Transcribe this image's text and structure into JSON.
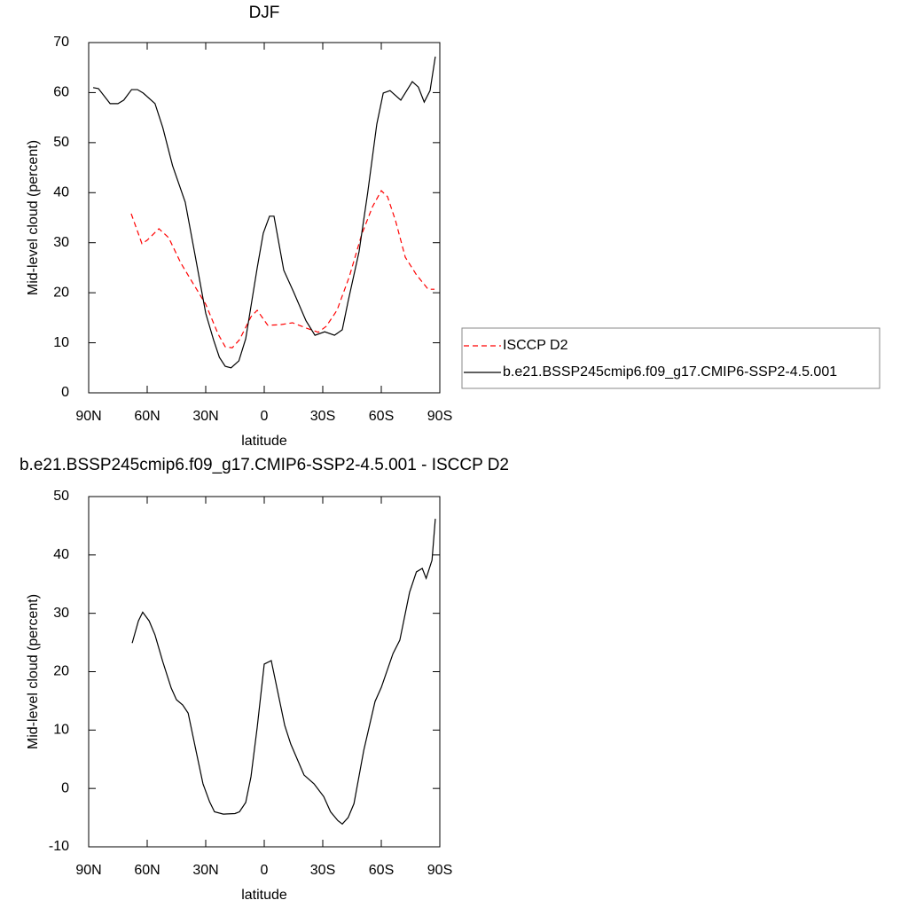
{
  "chart_data": [
    {
      "type": "line",
      "title": "DJF",
      "xlabel": "latitude",
      "ylabel": "Mid-level cloud (percent)",
      "xlim": [
        90,
        -90
      ],
      "xticks": [
        {
          "value": 90,
          "label": "90N"
        },
        {
          "value": 60,
          "label": "60N"
        },
        {
          "value": 30,
          "label": "30N"
        },
        0,
        {
          "value": -30,
          "label": "30S"
        },
        {
          "value": -60,
          "label": "60S"
        },
        {
          "value": -90,
          "label": "90S"
        }
      ],
      "ylim": [
        0,
        70
      ],
      "yticks": [
        0,
        10,
        20,
        30,
        40,
        50,
        60,
        70
      ],
      "grid": false,
      "legend": "right",
      "series": [
        {
          "name": "ISCCP D2",
          "color": "#ff0000",
          "style": "dashed",
          "x": [
            68.2,
            62.7,
            60,
            54,
            49,
            42.7,
            36.4,
            30,
            23.6,
            20,
            16.4,
            12.7,
            6.8,
            3.6,
            -1.8,
            -8,
            -14.5,
            -21.8,
            -27.7,
            -31.8,
            -37.3,
            -43.6,
            -50,
            -55.5,
            -60,
            -63.2,
            -67.3,
            -72.3,
            -78,
            -84,
            -87.3
          ],
          "values": [
            35.8,
            29.8,
            30.5,
            32.8,
            31,
            25.9,
            21.8,
            17.7,
            11.7,
            9.2,
            9,
            10.6,
            15.2,
            16.5,
            13.5,
            13.6,
            14,
            12.9,
            12.1,
            13.3,
            16.5,
            23.2,
            31.7,
            37.2,
            40.4,
            39.2,
            34.4,
            27.1,
            23.6,
            20.7,
            20.7
          ]
        },
        {
          "name": "b.e21.BSSP245cmip6.f09_g17.CMIP6-SSP2-4.5.001",
          "color": "#000000",
          "style": "solid",
          "x": [
            87.7,
            85,
            79,
            75,
            72,
            68,
            65,
            62,
            56,
            52,
            47,
            40.5,
            35.5,
            30,
            26,
            23,
            20,
            17,
            13,
            9.5,
            3.6,
            0.5,
            -2.7,
            -5,
            -10,
            -15,
            -21.4,
            -26,
            -31,
            -36,
            -40,
            -43,
            -48.6,
            -53,
            -57.7,
            -61,
            -64.5,
            -70,
            -75.9,
            -79,
            -82,
            -85,
            -87.7
          ],
          "values": [
            61,
            60.8,
            57.8,
            57.8,
            58.5,
            60.6,
            60.6,
            59.9,
            57.8,
            53,
            45.4,
            38.1,
            27.6,
            15.9,
            10.6,
            7.1,
            5.3,
            5,
            6.4,
            10.8,
            25,
            31.9,
            35.3,
            35.3,
            24.5,
            20.2,
            14.4,
            11.5,
            12.2,
            11.5,
            12.6,
            18.3,
            28.2,
            39.9,
            53.7,
            59.9,
            60.4,
            58.5,
            62.2,
            61.1,
            58.1,
            60.4,
            67.2
          ]
        }
      ]
    },
    {
      "type": "line",
      "title": "b.e21.BSSP245cmip6.f09_g17.CMIP6-SSP2-4.5.001 - ISCCP D2",
      "xlabel": "latitude",
      "ylabel": "Mid-level cloud (percent)",
      "xlim": [
        90,
        -90
      ],
      "xticks": [
        {
          "value": 90,
          "label": "90N"
        },
        {
          "value": 60,
          "label": "60N"
        },
        {
          "value": 30,
          "label": "30N"
        },
        0,
        {
          "value": -30,
          "label": "30S"
        },
        {
          "value": -60,
          "label": "60S"
        },
        {
          "value": -90,
          "label": "90S"
        }
      ],
      "ylim": [
        -10,
        50
      ],
      "yticks": [
        -10,
        0,
        10,
        20,
        30,
        40,
        50
      ],
      "grid": false,
      "series": [
        {
          "color": "#000000",
          "style": "solid",
          "x": [
            67.7,
            64.5,
            62.3,
            59,
            56,
            52,
            47.7,
            45,
            41.8,
            39,
            35,
            31.4,
            28,
            25.5,
            21,
            15,
            12.7,
            9.5,
            6.8,
            3.6,
            0,
            -3.6,
            -10.5,
            -13.6,
            -20.4,
            -25.5,
            -30.5,
            -34,
            -37.7,
            -40,
            -43,
            -46,
            -51,
            -56.8,
            -60,
            -66,
            -69.5,
            -74.5,
            -78,
            -81,
            -83,
            -86,
            -87.7
          ],
          "values": [
            24.9,
            28.7,
            30.2,
            28.7,
            26.3,
            21.7,
            17.2,
            15.2,
            14.3,
            12.9,
            6.5,
            0.8,
            -2.3,
            -4,
            -4.4,
            -4.3,
            -4,
            -2.4,
            2,
            10.5,
            21.3,
            21.9,
            10.8,
            7.6,
            2.3,
            0.8,
            -1.4,
            -4,
            -5.5,
            -6.1,
            -5,
            -2.6,
            6.5,
            14.9,
            17.3,
            23.1,
            25.4,
            33.6,
            37.1,
            37.7,
            36,
            39.1,
            46.2
          ]
        }
      ]
    }
  ]
}
